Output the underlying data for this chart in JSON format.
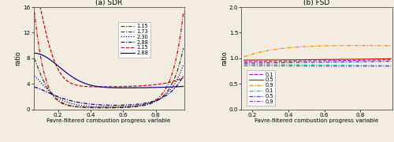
{
  "title_a": "(a) SDR",
  "title_b": "(b) FSD",
  "xlabel": "Favre-filtered combustion progress variable",
  "ylabel": "ratio",
  "xlim_a": [
    0.05,
    0.975
  ],
  "ylim_a": [
    0,
    16
  ],
  "xlim_b": [
    0.14,
    0.975
  ],
  "ylim_b": [
    0,
    2
  ],
  "yticks_a": [
    0,
    4,
    8,
    12,
    16
  ],
  "yticks_b": [
    0,
    0.5,
    1.0,
    1.5,
    2.0
  ],
  "background": "#f2ede0"
}
